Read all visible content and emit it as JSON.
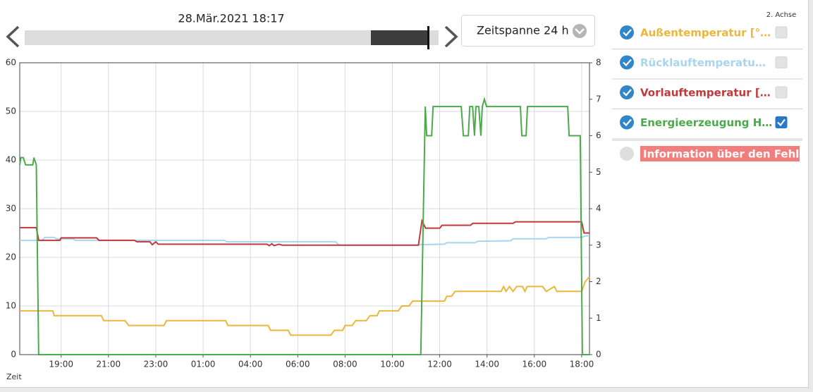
{
  "header": {
    "date": "28.Mär.2021 18:17",
    "timespan": "Zeitspanne 24 h"
  },
  "side_panel": {
    "axis2_label": "2. Achse",
    "info": "Information über den Fehl"
  },
  "chart_data": {
    "type": "line",
    "xlabel": "Zeit",
    "xlim": [
      17.25,
      41.33
    ],
    "xticks": [
      {
        "value": 19,
        "label": "19:00"
      },
      {
        "value": 21,
        "label": "21:00"
      },
      {
        "value": 23,
        "label": "23:00"
      },
      {
        "value": 25,
        "label": "01:00"
      },
      {
        "value": 27,
        "label": "04:00"
      },
      {
        "value": 29,
        "label": "06:00"
      },
      {
        "value": 31,
        "label": "08:00"
      },
      {
        "value": 33,
        "label": "10:00"
      },
      {
        "value": 35,
        "label": "12:00"
      },
      {
        "value": 37,
        "label": "14:00"
      },
      {
        "value": 39,
        "label": "16:00"
      },
      {
        "value": 41,
        "label": "18:00"
      }
    ],
    "ylim": [
      0,
      60
    ],
    "yticks": [
      0,
      10,
      20,
      30,
      40,
      50,
      60
    ],
    "y2lim": [
      0,
      8
    ],
    "y2ticks": [
      0,
      1,
      2,
      3,
      4,
      5,
      6,
      7,
      8
    ],
    "grid": true,
    "series": [
      {
        "name": "Außentemperatur [°…",
        "color": "#eab63c",
        "x": [
          17.25,
          18.65,
          18.7,
          20.7,
          20.8,
          21.7,
          21.85,
          23.35,
          23.45,
          25.95,
          26.05,
          27.75,
          27.85,
          28.6,
          28.7,
          30.4,
          30.55,
          30.9,
          31.0,
          31.3,
          31.45,
          31.9,
          32.05,
          32.35,
          32.45,
          33.25,
          33.4,
          33.7,
          33.85,
          35.2,
          35.3,
          35.5,
          35.65,
          37.6,
          37.7,
          37.8,
          37.95,
          38.1,
          38.25,
          38.5,
          38.6,
          38.7,
          39.35,
          39.5,
          39.85,
          39.95,
          41.0,
          41.15,
          41.33
        ],
        "values": [
          9,
          9,
          8,
          8,
          7,
          7,
          6,
          6,
          7,
          7,
          6,
          6,
          5,
          5,
          4,
          4,
          5,
          5,
          6,
          6,
          7,
          7,
          8,
          8,
          9,
          9,
          10,
          10,
          11,
          11,
          12,
          12,
          13,
          13,
          14,
          13,
          14,
          13,
          14,
          14,
          13,
          14,
          14,
          13,
          14,
          13,
          13,
          15,
          16
        ]
      },
      {
        "name": "Rücklauftemperatu…",
        "color": "#a9d4f0",
        "x": [
          17.25,
          18.2,
          18.3,
          18.7,
          18.8,
          19.5,
          19.6,
          25.9,
          26.0,
          30.6,
          30.75,
          34.0,
          34.15,
          35.2,
          35.3,
          36.5,
          36.6,
          38.0,
          38.1,
          39.5,
          39.6,
          41.0,
          41.15,
          41.33
        ],
        "values": [
          23.5,
          23.5,
          24.1,
          24.1,
          23.8,
          23.8,
          23.5,
          23.5,
          23.2,
          23.2,
          22.5,
          22.5,
          22.6,
          22.7,
          23.0,
          23.0,
          23.3,
          23.4,
          23.8,
          23.8,
          24.1,
          24.1,
          24.4,
          24.4
        ]
      },
      {
        "name": "Vorlauftemperatur […",
        "color": "#c0393b",
        "x": [
          17.25,
          17.95,
          18.05,
          18.95,
          19.0,
          20.5,
          20.6,
          22.1,
          22.2,
          22.75,
          22.85,
          23.0,
          23.1,
          27.7,
          27.8,
          27.9,
          28.0,
          28.2,
          28.35,
          34.1,
          34.25,
          34.4,
          35.0,
          35.1,
          36.3,
          36.4,
          38.1,
          38.2,
          41.0,
          41.1,
          41.33
        ],
        "values": [
          26.1,
          26.1,
          23.5,
          23.5,
          24.0,
          24.0,
          23.5,
          23.5,
          23.2,
          23.2,
          22.6,
          23.2,
          22.7,
          22.7,
          22.4,
          22.8,
          22.4,
          22.7,
          22.5,
          22.5,
          27.5,
          26.0,
          26.0,
          26.6,
          26.6,
          27.0,
          27.0,
          27.3,
          27.3,
          25.0,
          25.0
        ]
      },
      {
        "name": "Energieerzeugung H…",
        "color": "#4ca94c",
        "axis": "y2",
        "x": [
          17.25,
          17.3,
          17.4,
          17.5,
          17.8,
          17.85,
          17.95,
          18.05,
          34.2,
          34.39,
          34.45,
          34.66,
          34.72,
          35.91,
          36.0,
          36.21,
          36.27,
          36.39,
          36.47,
          36.53,
          36.65,
          36.74,
          36.8,
          36.89,
          36.98,
          38.41,
          38.47,
          38.65,
          38.71,
          40.41,
          40.47,
          40.94,
          41.03,
          41.33
        ],
        "values": [
          5.2,
          5.4,
          5.4,
          5.2,
          5.2,
          5.4,
          5.2,
          0,
          0,
          6.8,
          6.0,
          6.0,
          6.8,
          6.8,
          6.0,
          6.0,
          6.8,
          6.8,
          6.0,
          6.8,
          6.8,
          6.0,
          6.8,
          7.0,
          6.8,
          6.8,
          6.0,
          6.0,
          6.8,
          6.8,
          6.0,
          6.0,
          0,
          0
        ]
      }
    ]
  }
}
